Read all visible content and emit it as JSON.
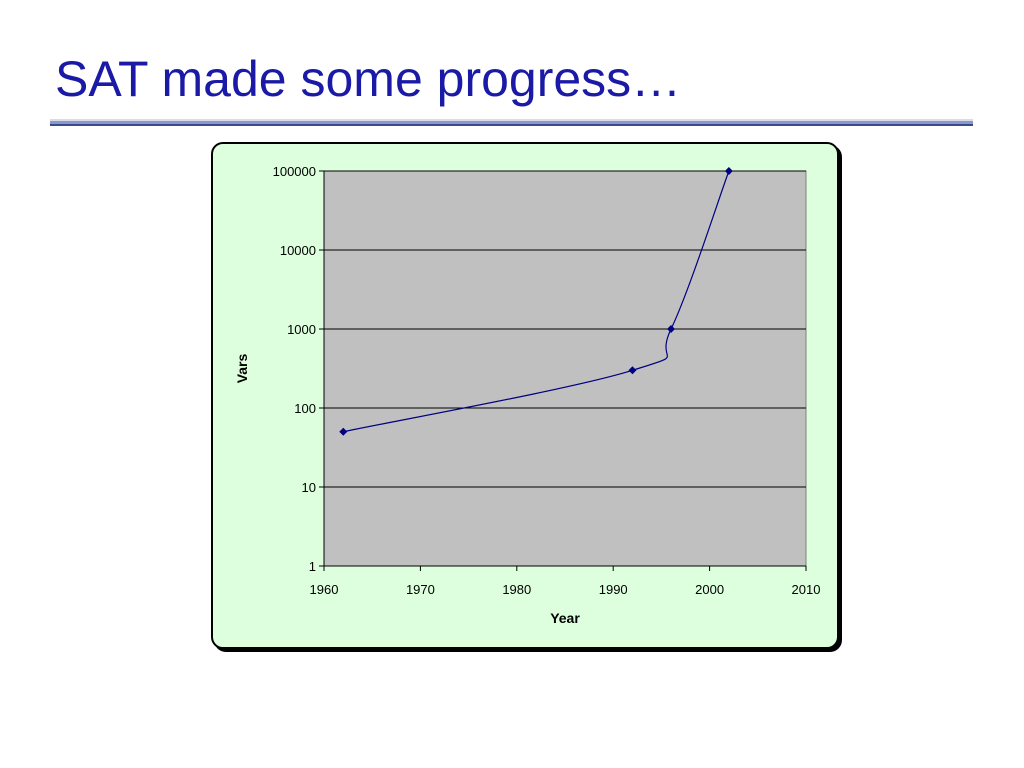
{
  "slide": {
    "title": "SAT made some progress…"
  },
  "colors": {
    "title": "#1a1aa6",
    "chart_background": "#ddffdd",
    "plot_area": "#c0c0c0",
    "series_line": "#000080"
  },
  "chart_data": {
    "type": "line",
    "title": "",
    "xlabel": "Year",
    "ylabel": "Vars",
    "xlim": [
      1960,
      2010
    ],
    "x_ticks": [
      1960,
      1970,
      1980,
      1990,
      2000,
      2010
    ],
    "y_scale": "log",
    "ylim": [
      1,
      100000
    ],
    "y_ticks": [
      1,
      10,
      100,
      1000,
      10000,
      100000
    ],
    "y_tick_labels": [
      "1",
      "10",
      "100",
      "1000",
      "10000",
      "100000"
    ],
    "grid": "horizontal major gridlines",
    "legend": "none",
    "series": [
      {
        "x": [
          1962,
          1992,
          1996,
          2002
        ],
        "y": [
          50,
          300,
          1000,
          100000
        ]
      }
    ]
  }
}
